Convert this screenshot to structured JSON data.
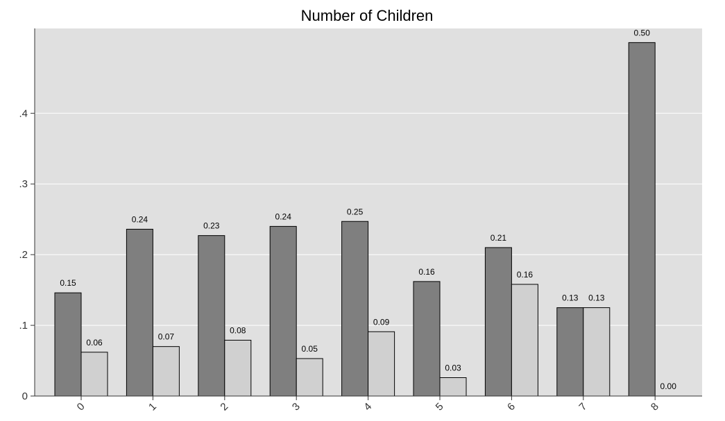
{
  "chart_data": {
    "type": "bar",
    "title": "Number of Children",
    "xlabel": "",
    "ylabel": "",
    "categories": [
      "0",
      "1",
      "2",
      "3",
      "4",
      "5",
      "6",
      "7",
      "8"
    ],
    "series": [
      {
        "values": [
          0.146,
          0.236,
          0.227,
          0.24,
          0.247,
          0.162,
          0.21,
          0.125,
          0.5
        ],
        "labels": [
          "0.15",
          "0.24",
          "0.23",
          "0.24",
          "0.25",
          "0.16",
          "0.21",
          "0.13",
          "0.50"
        ]
      },
      {
        "values": [
          0.062,
          0.07,
          0.079,
          0.053,
          0.091,
          0.026,
          0.158,
          0.125,
          0.0
        ],
        "labels": [
          "0.06",
          "0.07",
          "0.08",
          "0.05",
          "0.09",
          "0.03",
          "0.16",
          "0.13",
          "0.00"
        ]
      }
    ],
    "yticks": [
      0,
      0.1,
      0.2,
      0.3,
      0.4
    ],
    "ytick_labels": [
      "0",
      ".1",
      ".2",
      ".3",
      ".4"
    ],
    "ylim": [
      0,
      0.52
    ],
    "grid": true,
    "legend": false,
    "colors": {
      "plot_background": "#e0e0e0",
      "grid": "#ffffff",
      "series_1": "#7f7f7f",
      "series_2": "#d0d0d0",
      "bar_outline": "#000000"
    }
  }
}
